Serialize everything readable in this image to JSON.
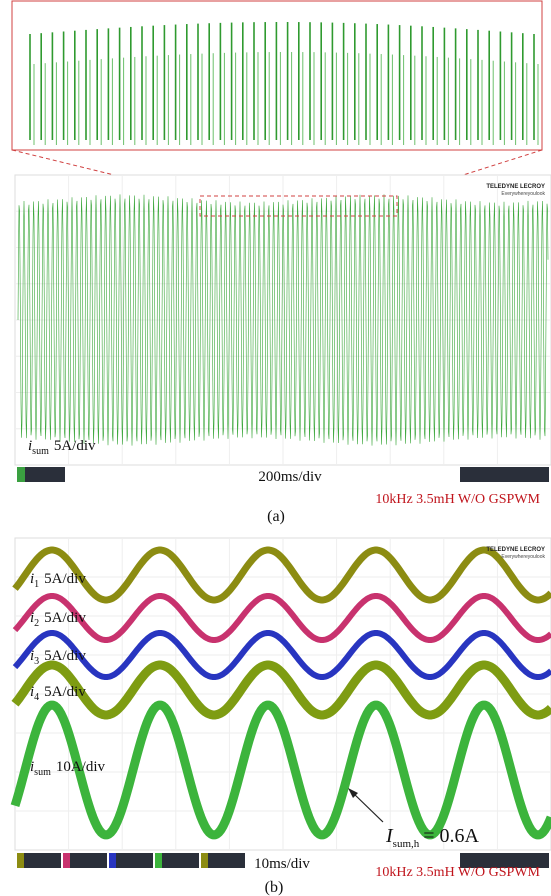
{
  "panel_a": {
    "logo": {
      "brand": "TELEDYNE LECROY",
      "tagline": "Everywhereyoulook"
    },
    "trace_label": {
      "symbol": "i",
      "subscript": "sum",
      "scale": "5A/div"
    },
    "timebase": "200ms/div",
    "condition": "10kHz 3.5mH W/O GSPWM",
    "caption": "(a)"
  },
  "panel_b": {
    "logo": {
      "brand": "TELEDYNE LECROY",
      "tagline": "Everywhereyoulook"
    },
    "trace_labels": [
      {
        "symbol": "i",
        "subscript": "1",
        "scale": "5A/div"
      },
      {
        "symbol": "i",
        "subscript": "2",
        "scale": "5A/div"
      },
      {
        "symbol": "i",
        "subscript": "3",
        "scale": "5A/div"
      },
      {
        "symbol": "i",
        "subscript": "4",
        "scale": "5A/div"
      },
      {
        "symbol": "i",
        "subscript": "sum",
        "scale": "10A/div"
      }
    ],
    "annotation": {
      "symbol": "I",
      "subscript": "sum,h",
      "text": "= 0.6A"
    },
    "timebase": "10ms/div",
    "condition": "10kHz 3.5mH W/O GSPWM",
    "caption": "(b)"
  }
}
